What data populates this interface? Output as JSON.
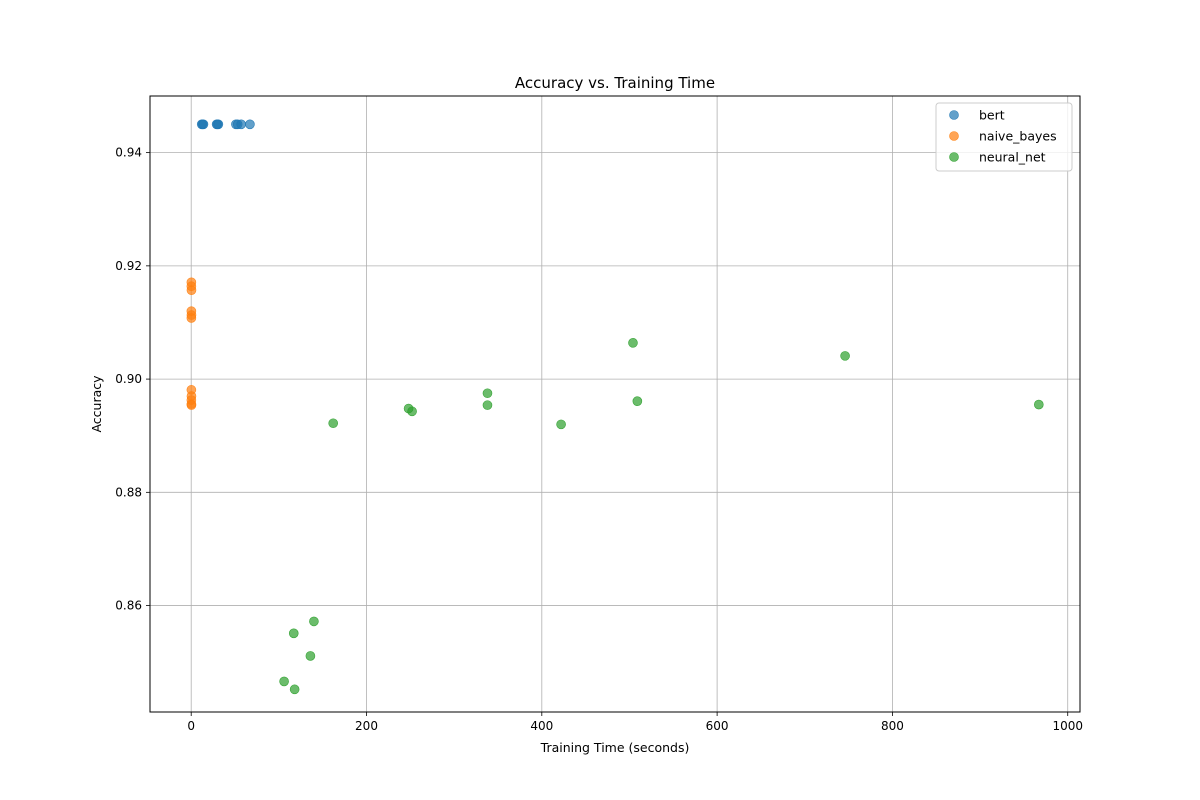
{
  "chart_data": {
    "type": "scatter",
    "title": "Accuracy vs. Training Time",
    "xlabel": "Training Time (seconds)",
    "ylabel": "Accuracy",
    "xlim": [
      -47,
      1014
    ],
    "ylim": [
      0.8412,
      0.95
    ],
    "xticks": [
      0,
      200,
      400,
      600,
      800,
      1000
    ],
    "xtick_labels": [
      "0",
      "200",
      "400",
      "600",
      "800",
      "1000"
    ],
    "yticks": [
      0.86,
      0.88,
      0.9,
      0.92,
      0.94
    ],
    "ytick_labels": [
      "0.86",
      "0.88",
      "0.90",
      "0.92",
      "0.94"
    ],
    "grid": true,
    "legend_position": "top-right",
    "series": [
      {
        "name": "bert",
        "color": "#1f77b4",
        "points": [
          {
            "x": 12,
            "y": 0.945
          },
          {
            "x": 13,
            "y": 0.945
          },
          {
            "x": 14,
            "y": 0.945
          },
          {
            "x": 29,
            "y": 0.945
          },
          {
            "x": 30,
            "y": 0.945
          },
          {
            "x": 31,
            "y": 0.945
          },
          {
            "x": 51,
            "y": 0.945
          },
          {
            "x": 53,
            "y": 0.945
          },
          {
            "x": 57,
            "y": 0.945
          },
          {
            "x": 67,
            "y": 0.945
          }
        ]
      },
      {
        "name": "naive_bayes",
        "color": "#ff7f0e",
        "points": [
          {
            "x": 0.2,
            "y": 0.9171
          },
          {
            "x": 0.2,
            "y": 0.9164
          },
          {
            "x": 0.3,
            "y": 0.9157
          },
          {
            "x": 0.2,
            "y": 0.912
          },
          {
            "x": 0.3,
            "y": 0.9113
          },
          {
            "x": 0.2,
            "y": 0.9108
          },
          {
            "x": 0.2,
            "y": 0.8981
          },
          {
            "x": 0.3,
            "y": 0.897
          },
          {
            "x": 0.2,
            "y": 0.8963
          },
          {
            "x": 0.2,
            "y": 0.8956
          },
          {
            "x": 0.3,
            "y": 0.8954
          }
        ]
      },
      {
        "name": "neural_net",
        "color": "#2ca02c",
        "points": [
          {
            "x": 162,
            "y": 0.8922
          },
          {
            "x": 248,
            "y": 0.8948
          },
          {
            "x": 252,
            "y": 0.8943
          },
          {
            "x": 338,
            "y": 0.8975
          },
          {
            "x": 338,
            "y": 0.8954
          },
          {
            "x": 422,
            "y": 0.892
          },
          {
            "x": 504,
            "y": 0.9064
          },
          {
            "x": 509,
            "y": 0.8961
          },
          {
            "x": 746,
            "y": 0.9041
          },
          {
            "x": 967,
            "y": 0.8955
          },
          {
            "x": 140,
            "y": 0.8572
          },
          {
            "x": 117,
            "y": 0.8551
          },
          {
            "x": 136,
            "y": 0.8511
          },
          {
            "x": 106,
            "y": 0.8466
          },
          {
            "x": 118,
            "y": 0.8452
          }
        ]
      }
    ]
  }
}
